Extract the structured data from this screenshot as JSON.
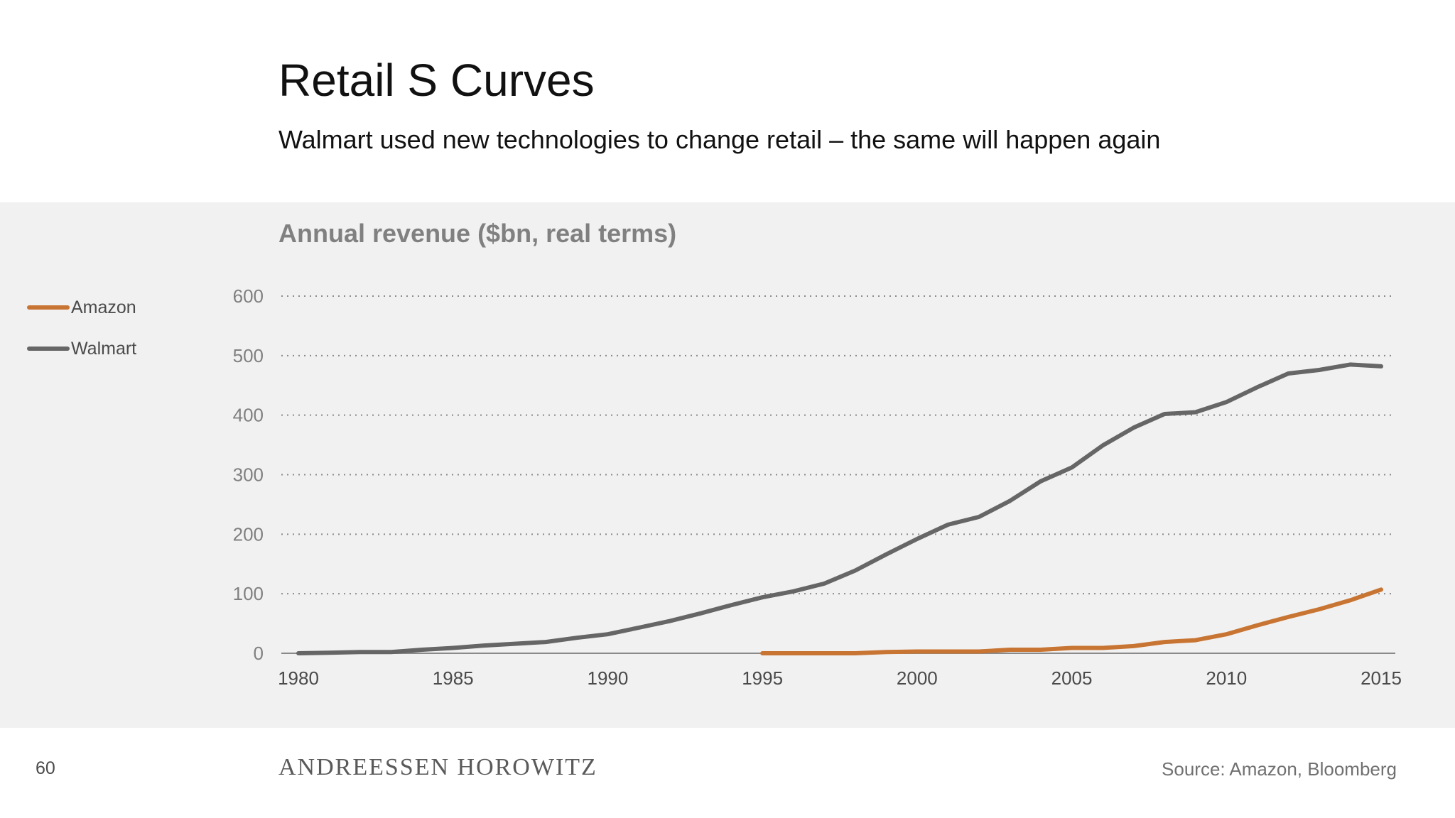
{
  "page": {
    "title": "Retail S Curves",
    "subtitle": "Walmart used new technologies to change retail – the same will happen again",
    "page_number": "60",
    "brand": "ANDREESSEN HOROWITZ",
    "source": "Source: Amazon, Bloomberg"
  },
  "chart_data": {
    "type": "line",
    "title": "Annual revenue ($bn, real terms)",
    "xlabel": "",
    "ylabel": "",
    "xlim": [
      1980,
      2015
    ],
    "ylim": [
      0,
      600
    ],
    "x_ticks": [
      1980,
      1985,
      1990,
      1995,
      2000,
      2005,
      2010,
      2015
    ],
    "y_ticks": [
      0,
      100,
      200,
      300,
      400,
      500,
      600
    ],
    "grid": "horizontal dotted",
    "legend": "left",
    "series": [
      {
        "name": "Amazon",
        "color": "#c87533",
        "x": [
          1995,
          1996,
          1997,
          1998,
          1999,
          2000,
          2001,
          2002,
          2003,
          2004,
          2005,
          2006,
          2007,
          2008,
          2009,
          2010,
          2011,
          2012,
          2013,
          2014,
          2015
        ],
        "values": [
          0,
          0,
          0,
          0,
          2,
          3,
          3,
          3,
          6,
          6,
          9,
          9,
          12,
          19,
          22,
          32,
          47,
          61,
          74,
          89,
          107
        ]
      },
      {
        "name": "Walmart",
        "color": "#666666",
        "x": [
          1980,
          1981,
          1982,
          1983,
          1984,
          1985,
          1986,
          1987,
          1988,
          1989,
          1990,
          1991,
          1992,
          1993,
          1994,
          1995,
          1996,
          1997,
          1998,
          1999,
          2000,
          2001,
          2002,
          2003,
          2004,
          2005,
          2006,
          2007,
          2008,
          2009,
          2010,
          2011,
          2012,
          2013,
          2014,
          2015
        ],
        "values": [
          0,
          1,
          2,
          2,
          6,
          9,
          13,
          16,
          19,
          26,
          32,
          43,
          54,
          67,
          81,
          94,
          104,
          117,
          139,
          166,
          192,
          216,
          229,
          256,
          289,
          312,
          349,
          379,
          402,
          405,
          422,
          447,
          470,
          476,
          485,
          482
        ]
      }
    ]
  }
}
